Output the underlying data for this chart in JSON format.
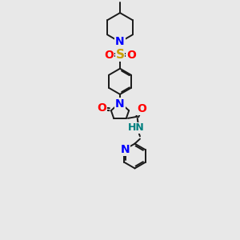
{
  "bg_color": "#e8e8e8",
  "bond_color": "#1a1a1a",
  "N_color": "#0000ff",
  "O_color": "#ff0000",
  "S_color": "#c8a000",
  "NH_color": "#008080",
  "figsize": [
    3.0,
    3.0
  ],
  "dpi": 100,
  "xlim": [
    0,
    10
  ],
  "ylim": [
    0,
    14
  ]
}
